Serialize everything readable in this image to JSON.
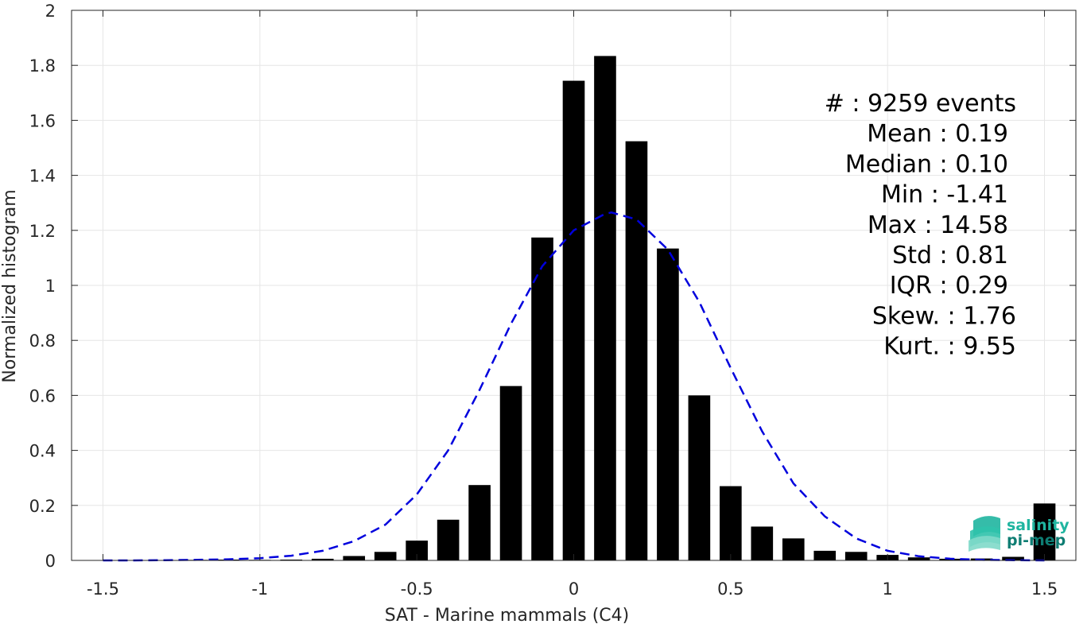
{
  "chart_data": {
    "type": "bar",
    "xlabel": "SAT - Marine mammals (C4)",
    "ylabel": "Normalized histogram",
    "xlim": [
      -1.6,
      1.6
    ],
    "ylim": [
      0,
      2
    ],
    "xticks": [
      -1.5,
      -1,
      -0.5,
      0,
      0.5,
      1,
      1.5
    ],
    "xtick_labels": [
      "-1.5",
      "-1",
      "-0.5",
      "0",
      "0.5",
      "1",
      "1.5"
    ],
    "yticks": [
      0,
      0.2,
      0.4,
      0.6,
      0.8,
      1,
      1.2,
      1.4,
      1.6,
      1.8,
      2
    ],
    "ytick_labels": [
      "0",
      "0.2",
      "0.4",
      "0.6",
      "0.8",
      "1",
      "1.2",
      "1.4",
      "1.6",
      "1.8",
      "2"
    ],
    "grid": true,
    "bar_width": 0.07,
    "bars": {
      "x": [
        -1.5,
        -1.4,
        -1.3,
        -1.2,
        -1.1,
        -1.0,
        -0.9,
        -0.8,
        -0.7,
        -0.6,
        -0.5,
        -0.4,
        -0.3,
        -0.2,
        -0.1,
        0.0,
        0.1,
        0.2,
        0.3,
        0.4,
        0.5,
        0.6,
        0.7,
        0.8,
        0.9,
        1.0,
        1.1,
        1.2,
        1.3,
        1.4,
        1.5
      ],
      "values": [
        0.001,
        0.001,
        0.001,
        0.002,
        0.003,
        0.002,
        0.003,
        0.006,
        0.016,
        0.031,
        0.072,
        0.148,
        0.274,
        0.634,
        1.174,
        1.744,
        1.834,
        1.524,
        1.134,
        0.6,
        0.27,
        0.123,
        0.08,
        0.035,
        0.031,
        0.02,
        0.011,
        0.006,
        0.007,
        0.013,
        0.207
      ],
      "color": "#000000"
    },
    "fit_curve": {
      "style": "dashed",
      "color": "#0000dd",
      "x": [
        -1.5,
        -1.4,
        -1.3,
        -1.2,
        -1.1,
        -1.0,
        -0.9,
        -0.8,
        -0.7,
        -0.6,
        -0.5,
        -0.4,
        -0.3,
        -0.2,
        -0.1,
        0.0,
        0.1,
        0.12,
        0.2,
        0.3,
        0.4,
        0.5,
        0.6,
        0.7,
        0.8,
        0.9,
        1.0,
        1.1,
        1.2,
        1.3,
        1.4,
        1.5
      ],
      "y": [
        0.0,
        0.0,
        0.001,
        0.002,
        0.004,
        0.008,
        0.017,
        0.035,
        0.07,
        0.13,
        0.24,
        0.4,
        0.62,
        0.86,
        1.07,
        1.2,
        1.26,
        1.265,
        1.24,
        1.13,
        0.94,
        0.7,
        0.47,
        0.28,
        0.16,
        0.08,
        0.035,
        0.015,
        0.006,
        0.002,
        0.001,
        0.0
      ]
    },
    "stats": [
      {
        "label": "#  : 9259 events"
      },
      {
        "label": "Mean : 0.19"
      },
      {
        "label": "Median : 0.10"
      },
      {
        "label": "Min : -1.41"
      },
      {
        "label": "Max : 14.58"
      },
      {
        "label": "Std : 0.81"
      },
      {
        "label": "IQR : 0.29"
      },
      {
        "label": "Skew. : 1.76"
      },
      {
        "label": "Kurt. : 9.55"
      }
    ]
  },
  "logo": {
    "line1": "salinity",
    "line2": "pi-mep",
    "color1": "#1fb5a0",
    "color2": "#0e7d73"
  }
}
